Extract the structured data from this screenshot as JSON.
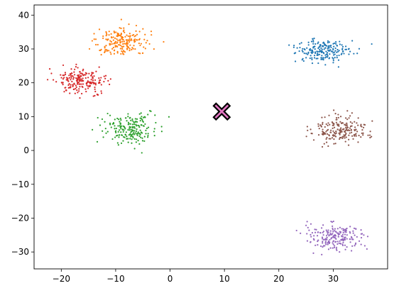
{
  "chart_data": {
    "type": "scatter",
    "title": "",
    "xlabel": "",
    "ylabel": "",
    "xlim": [
      -25,
      40
    ],
    "ylim": [
      -35,
      43
    ],
    "grid": false,
    "x_ticks": [
      -20,
      -10,
      0,
      10,
      20,
      30
    ],
    "x_tick_labels": [
      "−20",
      "−10",
      "0",
      "10",
      "20",
      "30"
    ],
    "y_ticks": [
      -30,
      -20,
      -10,
      0,
      10,
      20,
      30,
      40
    ],
    "y_tick_labels": [
      "−30",
      "−20",
      "−10",
      "0",
      "10",
      "20",
      "30",
      "40"
    ],
    "clusters": [
      {
        "color": "#1f77b4",
        "center": [
          28,
          29.5
        ],
        "spread": [
          2.6,
          1.8
        ],
        "count": 200
      },
      {
        "color": "#ff7f0e",
        "center": [
          -8.5,
          32
        ],
        "spread": [
          2.4,
          2.3
        ],
        "count": 200
      },
      {
        "color": "#d62728",
        "center": [
          -16.5,
          20.5
        ],
        "spread": [
          2.4,
          2.0
        ],
        "count": 200
      },
      {
        "color": "#2ca02c",
        "center": [
          -7.5,
          6.5
        ],
        "spread": [
          2.5,
          2.2
        ],
        "count": 200
      },
      {
        "color": "#8c564b",
        "center": [
          31,
          6
        ],
        "spread": [
          2.6,
          2.0
        ],
        "count": 200
      },
      {
        "color": "#9467bd",
        "center": [
          30.5,
          -25.5
        ],
        "spread": [
          2.5,
          2.0
        ],
        "count": 200
      }
    ],
    "centroid_markers": [
      {
        "x": 9.5,
        "y": 11.5,
        "marker": "X",
        "color": "#000000",
        "facecolor": "#e377c2"
      }
    ]
  }
}
